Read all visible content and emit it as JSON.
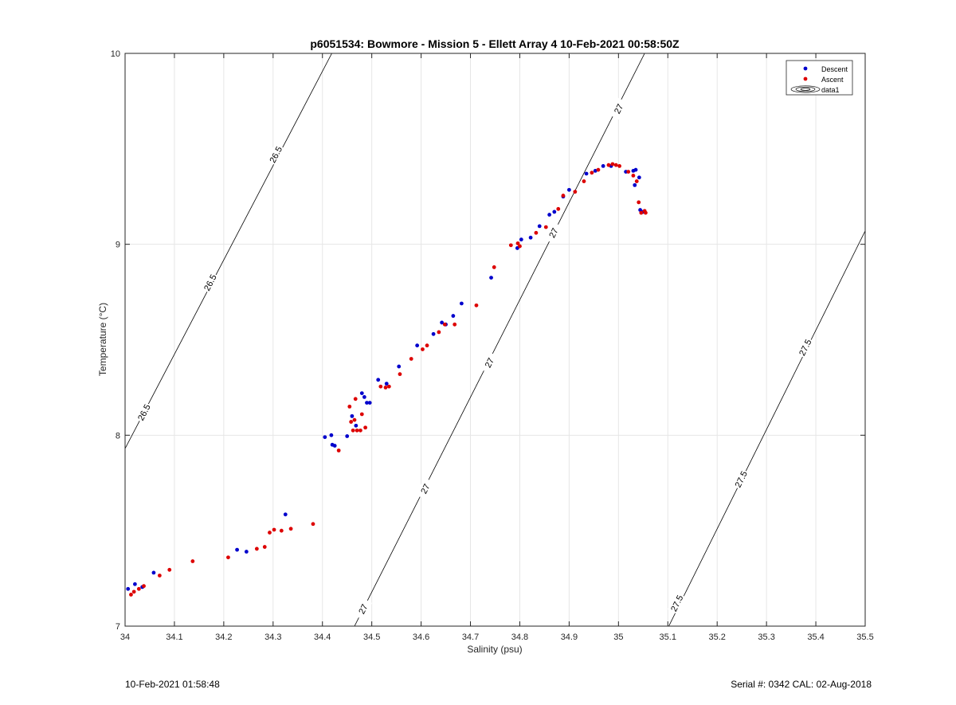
{
  "chart_data": {
    "type": "scatter",
    "title": "p6051534: Bowmore - Mission 5 - Ellett Array 4 10-Feb-2021 00:58:50Z",
    "xlabel": "Salinity (psu)",
    "ylabel": "Temperature (°C)",
    "xlim": [
      34,
      35.5
    ],
    "ylim": [
      7,
      10
    ],
    "xticks": [
      "34",
      "34.1",
      "34.2",
      "34.3",
      "34.4",
      "34.5",
      "34.6",
      "34.7",
      "34.8",
      "34.9",
      "35",
      "35.1",
      "35.2",
      "35.3",
      "35.4",
      "35.5"
    ],
    "yticks": [
      "7",
      "8",
      "9",
      "10"
    ],
    "grid": true,
    "legend_position": "top-right",
    "legend": [
      "Descent",
      "Ascent",
      "data1"
    ],
    "colors": {
      "descent": "#0000cc",
      "ascent": "#dd0000",
      "contour": "#000000",
      "grid": "#e6e6e6"
    },
    "series": [
      {
        "name": "Descent",
        "points": [
          [
            34.006,
            7.195
          ],
          [
            34.02,
            7.22
          ],
          [
            34.035,
            7.205
          ],
          [
            34.058,
            7.28
          ],
          [
            34.227,
            7.4
          ],
          [
            34.246,
            7.39
          ],
          [
            34.325,
            7.585
          ],
          [
            34.405,
            7.99
          ],
          [
            34.418,
            8.0
          ],
          [
            34.42,
            7.95
          ],
          [
            34.425,
            7.945
          ],
          [
            34.45,
            7.995
          ],
          [
            34.46,
            8.1
          ],
          [
            34.468,
            8.05
          ],
          [
            34.48,
            8.22
          ],
          [
            34.485,
            8.2
          ],
          [
            34.49,
            8.17
          ],
          [
            34.496,
            8.17
          ],
          [
            34.513,
            8.29
          ],
          [
            34.53,
            8.27
          ],
          [
            34.555,
            8.36
          ],
          [
            34.592,
            8.47
          ],
          [
            34.625,
            8.53
          ],
          [
            34.642,
            8.59
          ],
          [
            34.65,
            8.58
          ],
          [
            34.665,
            8.625
          ],
          [
            34.682,
            8.69
          ],
          [
            34.742,
            8.825
          ],
          [
            34.795,
            8.98
          ],
          [
            34.803,
            9.025
          ],
          [
            34.822,
            9.035
          ],
          [
            34.84,
            9.095
          ],
          [
            34.86,
            9.155
          ],
          [
            34.87,
            9.17
          ],
          [
            34.888,
            9.25
          ],
          [
            34.9,
            9.285
          ],
          [
            34.935,
            9.37
          ],
          [
            34.953,
            9.385
          ],
          [
            34.969,
            9.41
          ],
          [
            34.985,
            9.41
          ],
          [
            35.015,
            9.38
          ],
          [
            35.03,
            9.385
          ],
          [
            35.033,
            9.31
          ],
          [
            35.035,
            9.39
          ],
          [
            35.042,
            9.35
          ],
          [
            35.044,
            9.18
          ],
          [
            35.05,
            9.17
          ]
        ]
      },
      {
        "name": "Ascent",
        "points": [
          [
            34.012,
            7.165
          ],
          [
            34.018,
            7.18
          ],
          [
            34.028,
            7.195
          ],
          [
            34.038,
            7.21
          ],
          [
            34.07,
            7.265
          ],
          [
            34.09,
            7.295
          ],
          [
            34.137,
            7.34
          ],
          [
            34.209,
            7.36
          ],
          [
            34.267,
            7.405
          ],
          [
            34.283,
            7.415
          ],
          [
            34.293,
            7.49
          ],
          [
            34.302,
            7.505
          ],
          [
            34.317,
            7.5
          ],
          [
            34.336,
            7.51
          ],
          [
            34.381,
            7.535
          ],
          [
            34.433,
            7.92
          ],
          [
            34.455,
            8.15
          ],
          [
            34.458,
            8.07
          ],
          [
            34.462,
            8.025
          ],
          [
            34.465,
            8.08
          ],
          [
            34.467,
            8.19
          ],
          [
            34.47,
            8.025
          ],
          [
            34.477,
            8.025
          ],
          [
            34.48,
            8.11
          ],
          [
            34.487,
            8.04
          ],
          [
            34.518,
            8.255
          ],
          [
            34.528,
            8.25
          ],
          [
            34.535,
            8.255
          ],
          [
            34.557,
            8.32
          ],
          [
            34.58,
            8.4
          ],
          [
            34.603,
            8.45
          ],
          [
            34.612,
            8.47
          ],
          [
            34.636,
            8.54
          ],
          [
            34.648,
            8.58
          ],
          [
            34.668,
            8.58
          ],
          [
            34.712,
            8.68
          ],
          [
            34.748,
            8.88
          ],
          [
            34.782,
            8.995
          ],
          [
            34.796,
            9.005
          ],
          [
            34.8,
            8.99
          ],
          [
            34.833,
            9.06
          ],
          [
            34.853,
            9.09
          ],
          [
            34.878,
            9.185
          ],
          [
            34.888,
            9.255
          ],
          [
            34.912,
            9.275
          ],
          [
            34.93,
            9.33
          ],
          [
            34.946,
            9.375
          ],
          [
            34.959,
            9.39
          ],
          [
            34.98,
            9.415
          ],
          [
            34.988,
            9.42
          ],
          [
            34.995,
            9.415
          ],
          [
            35.002,
            9.41
          ],
          [
            35.02,
            9.38
          ],
          [
            35.03,
            9.36
          ],
          [
            35.037,
            9.33
          ],
          [
            35.041,
            9.22
          ],
          [
            35.046,
            9.165
          ],
          [
            35.053,
            9.175
          ],
          [
            35.055,
            9.165
          ]
        ]
      }
    ],
    "contours": [
      {
        "level": "26.5",
        "points": [
          [
            34.0,
            7.93
          ],
          [
            34.419,
            10.0
          ]
        ]
      },
      {
        "level": "27",
        "points": [
          [
            34.465,
            7.0
          ],
          [
            35.053,
            10.0
          ]
        ]
      },
      {
        "level": "27.5",
        "points": [
          [
            35.102,
            7.0
          ],
          [
            35.5,
            9.07
          ]
        ]
      }
    ],
    "contour_labels": [
      {
        "text": "26.5",
        "x": 34.038,
        "y": 8.12
      },
      {
        "text": "26.5",
        "x": 34.172,
        "y": 8.8
      },
      {
        "text": "26.5",
        "x": 34.305,
        "y": 9.47
      },
      {
        "text": "27",
        "x": 34.482,
        "y": 7.09
      },
      {
        "text": "27",
        "x": 34.608,
        "y": 7.72
      },
      {
        "text": "27",
        "x": 34.738,
        "y": 8.38
      },
      {
        "text": "27",
        "x": 34.868,
        "y": 9.06
      },
      {
        "text": "27",
        "x": 35.0,
        "y": 9.71
      },
      {
        "text": "27.5",
        "x": 35.118,
        "y": 7.12
      },
      {
        "text": "27.5",
        "x": 35.248,
        "y": 7.77
      },
      {
        "text": "27.5",
        "x": 35.378,
        "y": 8.46
      }
    ]
  },
  "footer": {
    "timestamp": "10-Feb-2021 01:58:48",
    "serial": "Serial #: 0342  CAL: 02-Aug-2018"
  }
}
